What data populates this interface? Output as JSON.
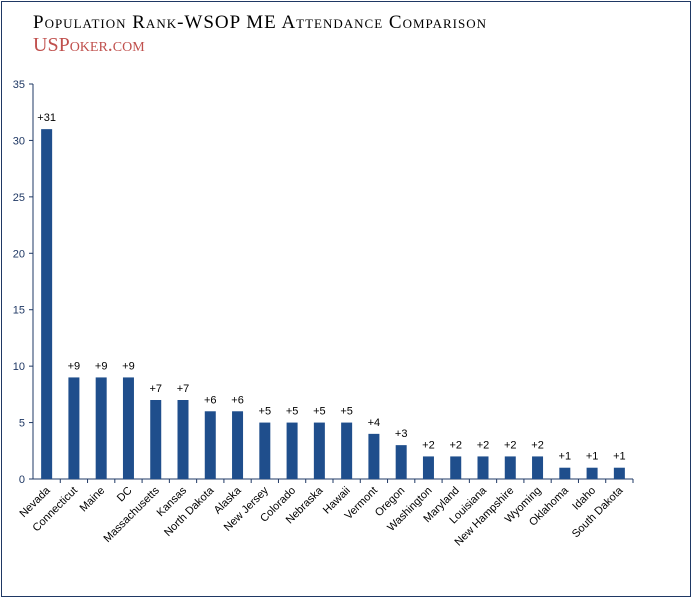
{
  "header": {
    "title": "Population Rank-WSOP ME Attendance Comparison",
    "logo": "USPoker.com"
  },
  "colors": {
    "bar": "#1f4e8c",
    "axis": "#1f3864",
    "frame": "#1f3864",
    "logo": "#c0504d"
  },
  "chart_data": {
    "type": "bar",
    "categories": [
      "Nevada",
      "Connecticut",
      "Maine",
      "DC",
      "Massachusetts",
      "Kansas",
      "North Dakota",
      "Alaska",
      "New Jersey",
      "Colorado",
      "Nebraska",
      "Hawaii",
      "Vermont",
      "Oregon",
      "Washington",
      "Maryland",
      "Louisiana",
      "New Hampshire",
      "Wyoming",
      "Oklahoma",
      "Idaho",
      "South Dakota"
    ],
    "values": [
      31,
      9,
      9,
      9,
      7,
      7,
      6,
      6,
      5,
      5,
      5,
      5,
      4,
      3,
      2,
      2,
      2,
      2,
      2,
      1,
      1,
      1
    ],
    "data_labels": [
      "+31",
      "+9",
      "+9",
      "+9",
      "+7",
      "+7",
      "+6",
      "+6",
      "+5",
      "+5",
      "+5",
      "+5",
      "+4",
      "+3",
      "+2",
      "+2",
      "+2",
      "+2",
      "+2",
      "+1",
      "+1",
      "+1"
    ],
    "title": "Population Rank-WSOP ME Attendance Comparison",
    "xlabel": "",
    "ylabel": "",
    "ylim": [
      0,
      35
    ],
    "yticks": [
      "0",
      "5",
      "10",
      "15",
      "20",
      "25",
      "30",
      "35"
    ],
    "grid": false,
    "legend": "none"
  }
}
